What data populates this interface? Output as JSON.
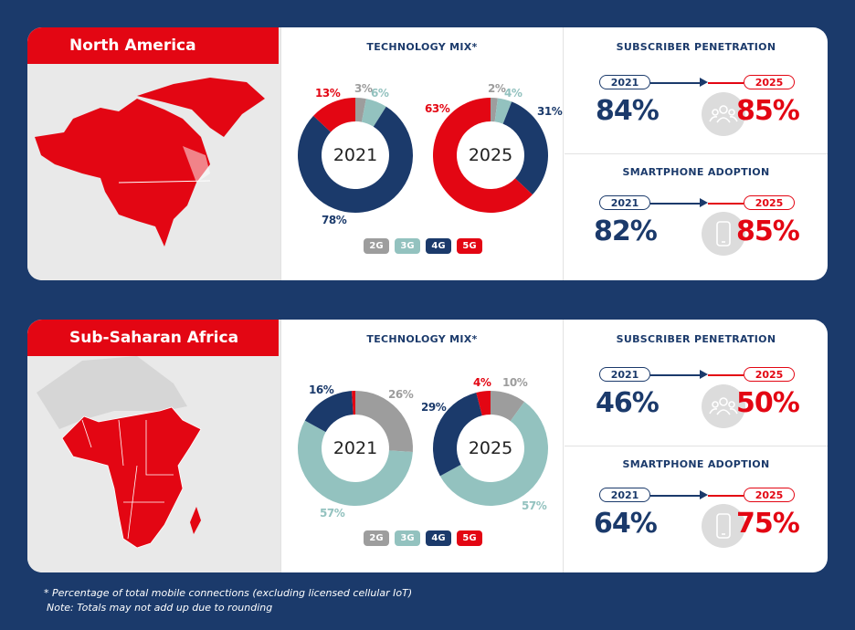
{
  "colors": {
    "2G": "#9d9d9d",
    "3G": "#93c2bf",
    "4G": "#1b3a6b",
    "5G": "#e30613",
    "background": "#1b3a6b"
  },
  "legend": [
    "2G",
    "3G",
    "4G",
    "5G"
  ],
  "regions": [
    {
      "name": "North America",
      "tech_title": "TECHNOLOGY MIX*",
      "sub_title": "SUBSCRIBER PENETRATION",
      "smart_title": "SMARTPHONE ADOPTION",
      "sub": {
        "y1": "2021",
        "y2": "2025",
        "v1": "84%",
        "v2": "85%"
      },
      "smart": {
        "y1": "2021",
        "y2": "2025",
        "v1": "82%",
        "v2": "85%"
      }
    },
    {
      "name": "Sub-Saharan Africa",
      "tech_title": "TECHNOLOGY MIX*",
      "sub_title": "SUBSCRIBER PENETRATION",
      "smart_title": "SMARTPHONE ADOPTION",
      "sub": {
        "y1": "2021",
        "y2": "2025",
        "v1": "46%",
        "v2": "50%"
      },
      "smart": {
        "y1": "2021",
        "y2": "2025",
        "v1": "64%",
        "v2": "75%"
      }
    }
  ],
  "chart_data": [
    {
      "type": "pie",
      "title": "North America – 2021",
      "categories": [
        "2G",
        "3G",
        "4G",
        "5G"
      ],
      "values": [
        3,
        6,
        78,
        13
      ],
      "labels": [
        "3%",
        "6%",
        "78%",
        "13%"
      ],
      "center_label": "2021"
    },
    {
      "type": "pie",
      "title": "North America – 2025",
      "categories": [
        "2G",
        "3G",
        "4G",
        "5G"
      ],
      "values": [
        2,
        4,
        31,
        63
      ],
      "labels": [
        "2%",
        "4%",
        "31%",
        "63%"
      ],
      "center_label": "2025"
    },
    {
      "type": "pie",
      "title": "Sub-Saharan Africa – 2021",
      "categories": [
        "2G",
        "3G",
        "4G",
        "5G"
      ],
      "values": [
        26,
        57,
        16,
        1
      ],
      "labels": [
        "26%",
        "57%",
        "16%",
        ""
      ],
      "center_label": "2021"
    },
    {
      "type": "pie",
      "title": "Sub-Saharan Africa – 2025",
      "categories": [
        "2G",
        "3G",
        "4G",
        "5G"
      ],
      "values": [
        10,
        57,
        29,
        4
      ],
      "labels": [
        "10%",
        "57%",
        "29%",
        "4%"
      ],
      "center_label": "2025"
    }
  ],
  "footnote": {
    "line1": "* Percentage of total mobile connections (excluding licensed cellular IoT)",
    "line2": "Note: Totals may not add up due to rounding"
  }
}
